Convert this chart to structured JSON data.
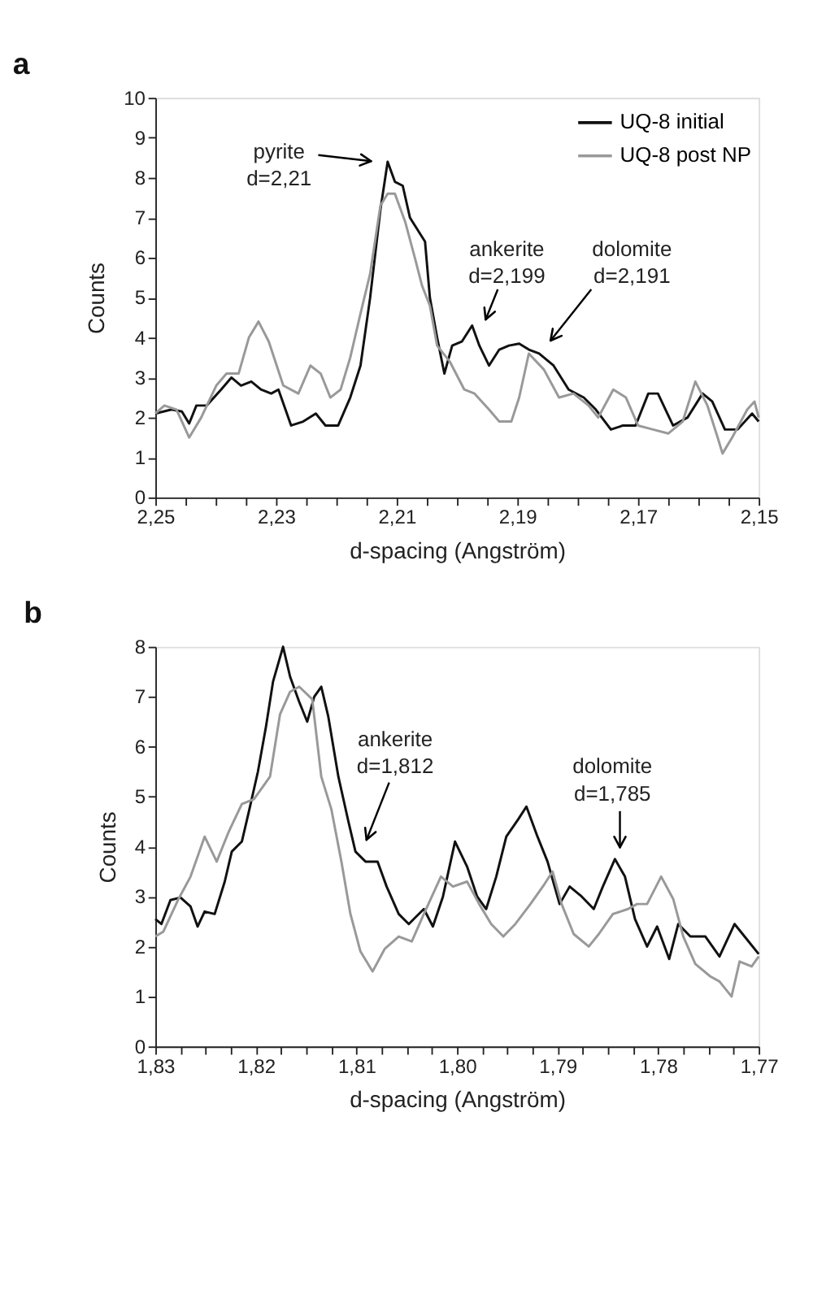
{
  "chart_data": [
    {
      "type": "line",
      "title": "a",
      "xlabel": "d-spacing (Angström)",
      "ylabel": "Counts",
      "legend": "top right",
      "line_style": "solid",
      "xlim": [
        2.25,
        2.15
      ],
      "xticks": [
        {
          "value": 2.25,
          "label": "2,25"
        },
        {
          "value": 2.245,
          "label": null
        },
        {
          "value": 2.24,
          "label": null
        },
        {
          "value": 2.235,
          "label": null
        },
        {
          "value": 2.23,
          "label": "2,23"
        },
        {
          "value": 2.225,
          "label": null
        },
        {
          "value": 2.22,
          "label": null
        },
        {
          "value": 2.215,
          "label": null
        },
        {
          "value": 2.21,
          "label": "2,21"
        },
        {
          "value": 2.205,
          "label": null
        },
        {
          "value": 2.2,
          "label": null
        },
        {
          "value": 2.195,
          "label": null
        },
        {
          "value": 2.19,
          "label": "2,19"
        },
        {
          "value": 2.185,
          "label": null
        },
        {
          "value": 2.18,
          "label": null
        },
        {
          "value": 2.175,
          "label": null
        },
        {
          "value": 2.17,
          "label": "2,17"
        },
        {
          "value": 2.165,
          "label": null
        },
        {
          "value": 2.16,
          "label": null
        },
        {
          "value": 2.155,
          "label": null
        },
        {
          "value": 2.15,
          "label": "2,15"
        }
      ],
      "ylim": [
        0,
        10
      ],
      "yticks": [
        0,
        1,
        2,
        3,
        4,
        5,
        6,
        7,
        8,
        9,
        10
      ],
      "series": [
        {
          "name": "UQ-8 initial",
          "color": "#111111",
          "x": [
            2.25,
            2.2473,
            2.2456,
            2.2444,
            2.2432,
            2.2415,
            2.2391,
            2.2374,
            2.2358,
            2.2341,
            2.2325,
            2.2308,
            2.2296,
            2.2275,
            2.2255,
            2.2234,
            2.2218,
            2.2197,
            2.2177,
            2.216,
            2.2144,
            2.2127,
            2.2115,
            2.2103,
            2.209,
            2.2078,
            2.2053,
            2.2045,
            2.2033,
            2.2021,
            2.2008,
            2.1992,
            2.1975,
            2.1963,
            2.1947,
            2.193,
            2.1914,
            2.1897,
            2.1881,
            2.1864,
            2.184,
            2.1815,
            2.179,
            2.177,
            2.1745,
            2.1725,
            2.1704,
            2.1683,
            2.1667,
            2.1642,
            2.1618,
            2.1593,
            2.1577,
            2.1556,
            2.1535,
            2.1511,
            2.15
          ],
          "values": [
            2.1,
            2.2,
            2.15,
            1.85,
            2.3,
            2.3,
            2.7,
            3.0,
            2.8,
            2.9,
            2.7,
            2.6,
            2.7,
            1.8,
            1.9,
            2.1,
            1.8,
            1.8,
            2.5,
            3.3,
            5.0,
            7.2,
            8.4,
            7.9,
            7.8,
            7.0,
            6.4,
            5.0,
            4.0,
            3.1,
            3.8,
            3.9,
            4.3,
            3.8,
            3.3,
            3.7,
            3.8,
            3.85,
            3.7,
            3.6,
            3.3,
            2.7,
            2.5,
            2.2,
            1.7,
            1.8,
            1.8,
            2.6,
            2.6,
            1.8,
            2.0,
            2.6,
            2.4,
            1.7,
            1.7,
            2.1,
            1.9
          ]
        },
        {
          "name": "UQ-8 post NP",
          "color": "#999999",
          "x": [
            2.25,
            2.2485,
            2.2465,
            2.2444,
            2.2424,
            2.2399,
            2.2382,
            2.2362,
            2.2345,
            2.2329,
            2.2312,
            2.2288,
            2.2263,
            2.2243,
            2.2226,
            2.221,
            2.2193,
            2.2177,
            2.216,
            2.2144,
            2.2127,
            2.2115,
            2.2103,
            2.2086,
            2.207,
            2.2058,
            2.2045,
            2.2033,
            2.2012,
            2.1988,
            2.1971,
            2.1947,
            2.193,
            2.191,
            2.1897,
            2.1881,
            2.1856,
            2.1831,
            2.1807,
            2.1782,
            2.1766,
            2.1741,
            2.172,
            2.17,
            2.1675,
            2.165,
            2.1626,
            2.1605,
            2.1585,
            2.1568,
            2.156,
            2.1544,
            2.1519,
            2.1507,
            2.15
          ],
          "values": [
            2.1,
            2.3,
            2.2,
            1.5,
            2.0,
            2.8,
            3.1,
            3.1,
            4.0,
            4.4,
            3.9,
            2.8,
            2.6,
            3.3,
            3.1,
            2.5,
            2.7,
            3.5,
            4.6,
            5.6,
            7.3,
            7.6,
            7.6,
            6.9,
            6.0,
            5.3,
            4.8,
            3.8,
            3.4,
            2.7,
            2.6,
            2.2,
            1.9,
            1.9,
            2.5,
            3.6,
            3.2,
            2.5,
            2.6,
            2.3,
            2.0,
            2.7,
            2.5,
            1.8,
            1.7,
            1.6,
            1.9,
            2.9,
            2.3,
            1.5,
            1.1,
            1.5,
            2.2,
            2.4,
            2.0
          ]
        }
      ],
      "annotations": [
        "pyrite\nd=2,21",
        "ankerite\nd=2,199",
        "dolomite\nd=2,191"
      ]
    },
    {
      "type": "line",
      "title": "b",
      "xlabel": "d-spacing (Angström)",
      "ylabel": "Counts",
      "legend": "top right",
      "line_style": "solid",
      "xlim": [
        1.83,
        1.77
      ],
      "xticks": [
        {
          "value": 1.83,
          "label": "1,83"
        },
        {
          "value": 1.8275,
          "label": null
        },
        {
          "value": 1.825,
          "label": null
        },
        {
          "value": 1.8225,
          "label": null
        },
        {
          "value": 1.82,
          "label": "1,82"
        },
        {
          "value": 1.8175,
          "label": null
        },
        {
          "value": 1.815,
          "label": null
        },
        {
          "value": 1.8125,
          "label": null
        },
        {
          "value": 1.81,
          "label": "1,81"
        },
        {
          "value": 1.8075,
          "label": null
        },
        {
          "value": 1.805,
          "label": null
        },
        {
          "value": 1.8025,
          "label": null
        },
        {
          "value": 1.8,
          "label": "1,80"
        },
        {
          "value": 1.7975,
          "label": null
        },
        {
          "value": 1.795,
          "label": null
        },
        {
          "value": 1.7925,
          "label": null
        },
        {
          "value": 1.79,
          "label": "1,79"
        },
        {
          "value": 1.7875,
          "label": null
        },
        {
          "value": 1.785,
          "label": null
        },
        {
          "value": 1.7825,
          "label": null
        },
        {
          "value": 1.78,
          "label": "1,78"
        },
        {
          "value": 1.7775,
          "label": null
        },
        {
          "value": 1.775,
          "label": null
        },
        {
          "value": 1.7725,
          "label": null
        },
        {
          "value": 1.77,
          "label": "1,77"
        }
      ],
      "ylim": [
        0,
        8
      ],
      "yticks": [
        0,
        1,
        2,
        3,
        4,
        5,
        6,
        7,
        8
      ],
      "series": [
        {
          "name": "UQ-8 initial",
          "color": "#111111",
          "x": [
            1.83,
            1.8294,
            1.8285,
            1.8275,
            1.8265,
            1.8258,
            1.8251,
            1.8241,
            1.8231,
            1.8224,
            1.8214,
            1.8207,
            1.8198,
            1.819,
            1.8183,
            1.8173,
            1.8166,
            1.8157,
            1.8149,
            1.8142,
            1.8135,
            1.8128,
            1.8118,
            1.8108,
            1.8101,
            1.8091,
            1.8079,
            1.807,
            1.8058,
            1.8048,
            1.8033,
            1.8024,
            1.8014,
            1.8002,
            1.799,
            1.798,
            1.7971,
            1.7961,
            1.7951,
            1.7939,
            1.7931,
            1.792,
            1.791,
            1.7898,
            1.7888,
            1.7876,
            1.7864,
            1.7855,
            1.7843,
            1.7833,
            1.7823,
            1.7811,
            1.7801,
            1.7789,
            1.778,
            1.7768,
            1.7753,
            1.7739,
            1.7724,
            1.771,
            1.77
          ],
          "values": [
            2.55,
            2.45,
            2.93,
            2.98,
            2.8,
            2.4,
            2.7,
            2.65,
            3.3,
            3.9,
            4.1,
            4.7,
            5.5,
            6.4,
            7.3,
            8.0,
            7.4,
            6.9,
            6.5,
            7.0,
            7.2,
            6.6,
            5.4,
            4.5,
            3.9,
            3.7,
            3.7,
            3.2,
            2.65,
            2.45,
            2.75,
            2.4,
            3.0,
            4.1,
            3.6,
            3.0,
            2.75,
            3.4,
            4.2,
            4.55,
            4.8,
            4.2,
            3.7,
            2.85,
            3.2,
            3.0,
            2.75,
            3.2,
            3.75,
            3.4,
            2.55,
            2.0,
            2.4,
            1.75,
            2.45,
            2.2,
            2.2,
            1.8,
            2.45,
            2.1,
            1.85
          ]
        },
        {
          "name": "UQ-8 post NP",
          "color": "#999999",
          "x": [
            1.83,
            1.8292,
            1.8277,
            1.8265,
            1.8251,
            1.8239,
            1.8227,
            1.8214,
            1.8202,
            1.8193,
            1.8186,
            1.8176,
            1.8166,
            1.8157,
            1.8144,
            1.8135,
            1.8125,
            1.8115,
            1.8106,
            1.8096,
            1.8084,
            1.8072,
            1.8058,
            1.8045,
            1.8033,
            1.8016,
            1.8004,
            1.799,
            1.7978,
            1.7966,
            1.7954,
            1.7942,
            1.7927,
            1.7913,
            1.7905,
            1.7896,
            1.7884,
            1.7869,
            1.7859,
            1.7845,
            1.783,
            1.7821,
            1.7811,
            1.7797,
            1.7785,
            1.7775,
            1.7763,
            1.7748,
            1.7739,
            1.7727,
            1.7719,
            1.7707,
            1.77
          ],
          "values": [
            2.2,
            2.3,
            2.95,
            3.4,
            4.2,
            3.7,
            4.3,
            4.85,
            4.95,
            5.2,
            5.4,
            6.65,
            7.1,
            7.2,
            6.95,
            5.4,
            4.75,
            3.7,
            2.65,
            1.9,
            1.5,
            1.95,
            2.2,
            2.1,
            2.65,
            3.4,
            3.2,
            3.3,
            2.85,
            2.45,
            2.2,
            2.45,
            2.85,
            3.25,
            3.5,
            2.85,
            2.25,
            2.0,
            2.25,
            2.65,
            2.75,
            2.85,
            2.85,
            3.4,
            2.95,
            2.2,
            1.65,
            1.4,
            1.3,
            1.0,
            1.7,
            1.6,
            1.8
          ]
        }
      ],
      "annotations": [
        "ankerite\nd=1,812",
        "dolomite\nd=1,785"
      ]
    }
  ]
}
